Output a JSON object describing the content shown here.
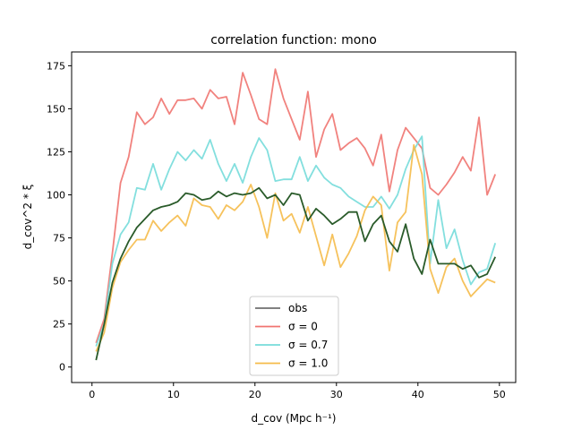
{
  "chart_data": {
    "type": "line",
    "title": "correlation function: mono",
    "xlabel": "d_cov (Mpc h⁻¹)",
    "ylabel": "d_cov^2 * ξ",
    "xlim": [
      -2.5,
      52
    ],
    "ylim": [
      -9,
      183
    ],
    "xticks": [
      0,
      10,
      20,
      30,
      40,
      50
    ],
    "yticks": [
      0,
      25,
      50,
      75,
      100,
      125,
      150,
      175
    ],
    "grid": false,
    "legend_position": "lower center",
    "x": [
      0.5,
      1.5,
      2.5,
      3.5,
      4.5,
      5.5,
      6.5,
      7.5,
      8.5,
      9.5,
      10.5,
      11.5,
      12.5,
      13.5,
      14.5,
      15.5,
      16.5,
      17.5,
      18.5,
      19.5,
      20.5,
      21.5,
      22.5,
      23.5,
      24.5,
      25.5,
      26.5,
      27.5,
      28.5,
      29.5,
      30.5,
      31.5,
      32.5,
      33.5,
      34.5,
      35.5,
      36.5,
      37.5,
      38.5,
      39.5,
      40.5,
      41.5,
      42.5,
      43.5,
      44.5,
      45.5,
      46.5,
      47.5,
      48.5,
      49.5
    ],
    "series": [
      {
        "name": "σ = 0",
        "color": "#f07470",
        "values": [
          14,
          28,
          66,
          107,
          122,
          148,
          141,
          145,
          156,
          147,
          155,
          155,
          156,
          150,
          161,
          156,
          157,
          141,
          171,
          158,
          144,
          141,
          173,
          156,
          144,
          132,
          160,
          122,
          138,
          147,
          126,
          130,
          133,
          127,
          117,
          135,
          102,
          126,
          139,
          133,
          127,
          104,
          100,
          106,
          113,
          122,
          114,
          145,
          100,
          112
        ]
      },
      {
        "name": "σ = 0.7",
        "color": "#76dcda",
        "values": [
          12,
          25,
          60,
          77,
          84,
          104,
          103,
          118,
          103,
          115,
          125,
          120,
          126,
          121,
          132,
          118,
          108,
          118,
          107,
          122,
          133,
          126,
          108,
          109,
          109,
          122,
          108,
          117,
          110,
          106,
          104,
          99,
          96,
          93,
          93,
          99,
          92,
          100,
          115,
          126,
          134,
          60,
          97,
          69,
          80,
          62,
          48,
          55,
          57,
          72
        ]
      },
      {
        "name": "σ = 1.0",
        "color": "#f5bb4a",
        "values": [
          9,
          20,
          46,
          61,
          68,
          74,
          74,
          85,
          79,
          84,
          88,
          82,
          98,
          94,
          93,
          86,
          94,
          91,
          96,
          106,
          93,
          75,
          101,
          85,
          89,
          78,
          93,
          76,
          59,
          77,
          58,
          66,
          76,
          91,
          99,
          94,
          56,
          84,
          90,
          129,
          112,
          57,
          43,
          58,
          63,
          50,
          41,
          46,
          51,
          49
        ]
      },
      {
        "name": "obs",
        "color": "#6f6f6f",
        "draw_color": "#2a5b2a",
        "values": [
          4,
          25,
          49,
          63,
          73,
          81,
          86,
          91,
          93,
          94,
          96,
          101,
          100,
          97,
          98,
          102,
          99,
          101,
          100,
          101,
          104,
          98,
          100,
          94,
          101,
          100,
          85,
          92,
          88,
          83,
          86,
          90,
          90,
          73,
          83,
          88,
          73,
          67,
          83,
          63,
          54,
          74,
          60,
          60,
          60,
          57,
          59,
          52,
          54,
          64
        ]
      }
    ],
    "legend_order": [
      "obs",
      "σ = 0",
      "σ = 0.7",
      "σ = 1.0"
    ]
  }
}
